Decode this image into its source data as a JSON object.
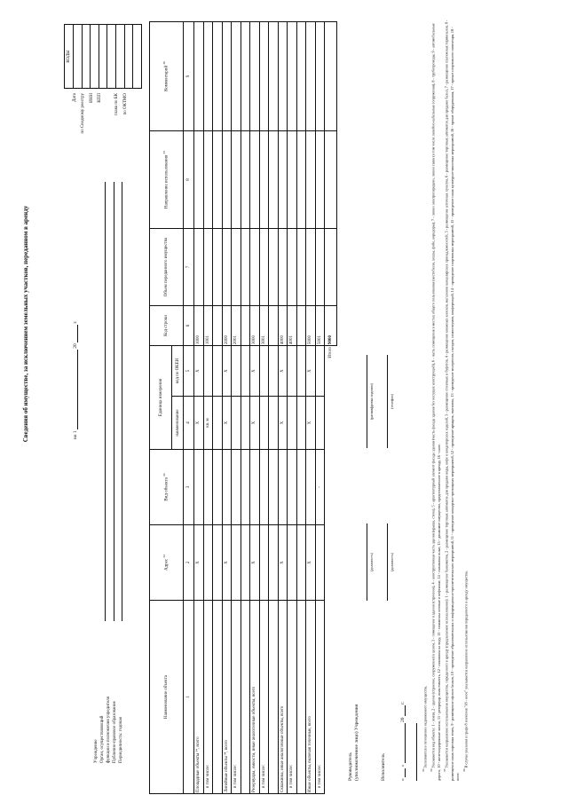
{
  "title": "Сведения об имуществе, за исключением земельных участков, переданном в аренду",
  "as_of": {
    "prefix": "на 1",
    "year_prefix": "20",
    "year_suffix": "г."
  },
  "codes": {
    "header": "КОДЫ",
    "labels": [
      "Дата",
      "по Сводному реестру",
      "ИНН",
      "КПП",
      "",
      "глава по БК",
      "по ОКТМО"
    ]
  },
  "org_fields": [
    {
      "label": "Учреждение"
    },
    {
      "label": "Орган, осуществляющий"
    },
    {
      "label": "функции и полномочия учредителя"
    },
    {
      "label": "Публично-правовое образование"
    },
    {
      "label": "Периодичность: годовая"
    }
  ],
  "table": {
    "headers": {
      "name": "Наименование объекта",
      "address": "Адрес",
      "address_note": "33",
      "type": "Вид объекта",
      "type_note": "34",
      "unit": "Единица измерения",
      "unit_name": "наименование",
      "unit_okei": "код по ОКЕИ",
      "row_code": "Код строки",
      "volume": "Объем переданного имущества",
      "usage": "Направление использования",
      "usage_note": "35",
      "comment": "Комментарий",
      "comment_note": "36"
    },
    "column_numbers": [
      "1",
      "2",
      "3",
      "4",
      "5",
      "6",
      "7",
      "8",
      "9"
    ],
    "rows": [
      {
        "name": "Площадные объекты ³⁴, всего",
        "address": "X",
        "type": "",
        "unit_name": "X",
        "okei": "X",
        "code": "1000"
      },
      {
        "name": "в том числе:",
        "indent": true,
        "address": "",
        "type": "",
        "unit_name": "кв. м",
        "okei": "",
        "code": "1001"
      },
      {
        "name": "",
        "address": "",
        "type": "",
        "unit_name": "",
        "okei": "",
        "code": ""
      },
      {
        "name": "Линейные объекты ³⁴, всего",
        "address": "X",
        "type": "",
        "unit_name": "X",
        "okei": "X",
        "code": "2000"
      },
      {
        "name": "в том числе:",
        "indent": true,
        "address": "",
        "type": "",
        "unit_name": "",
        "okei": "",
        "code": "2001"
      },
      {
        "name": "",
        "address": "",
        "type": "",
        "unit_name": "",
        "okei": "",
        "code": ""
      },
      {
        "name": "Резервуары, емкости, иные аналогичные объекты, всего",
        "address": "X",
        "type": "",
        "unit_name": "X",
        "okei": "X",
        "code": "3000"
      },
      {
        "name": "в том числе:",
        "indent": true,
        "address": "",
        "type": "",
        "unit_name": "",
        "okei": "",
        "code": "3001"
      },
      {
        "name": "",
        "address": "",
        "type": "",
        "unit_name": "",
        "okei": "",
        "code": ""
      },
      {
        "name": "Скважины, иные аналогичные объекты, всего",
        "address": "X",
        "type": "",
        "unit_name": "X",
        "okei": "X",
        "code": "4000"
      },
      {
        "name": "в том числе:",
        "indent": true,
        "address": "",
        "type": "",
        "unit_name": "",
        "okei": "",
        "code": "4001"
      },
      {
        "name": "",
        "address": "",
        "type": "",
        "unit_name": "",
        "okei": "",
        "code": ""
      },
      {
        "name": "Иные объекты, включая точечные, всего",
        "address": "X",
        "type": "",
        "unit_name": "X",
        "okei": "X",
        "code": "5000"
      },
      {
        "name": "в том числе:",
        "indent": true,
        "address": "",
        "type": "-",
        "unit_name": "",
        "okei": "",
        "code": "5001"
      }
    ],
    "total": {
      "label": "Итого",
      "code": "9000"
    }
  },
  "signatures": {
    "head_label_1": "Руководитель",
    "head_label_2": "(уполномоченное лицо) Учреждения",
    "executor_label": "Исполнитель",
    "position_caption": "(должность)",
    "decode_caption": "(расшифровка подписи)",
    "phone_caption": "(телефон)",
    "date_quote_open": "«",
    "date_quote_close": "»",
    "date_year": "20",
    "date_suffix": "г."
  },
  "footnotes": [
    {
      "num": "33",
      "text": "Заполняется в отношении недвижимого имущества."
    },
    {
      "num": "34",
      "text": "Указывается вид объекта: 1 - земля, 2 - здание (строение, сооружение) в целом, 3 - помещение в здании (строении), 4 - конструктивная часть здания (крыша, стена), 5 - архитектурный элемент фасада здания (часть фасада здания без несущих конструкций), 6 - часть помещения в местах общего пользования (вестибюли, холлы, фойе, коридоры), 7 - линии электропередачи, линии связи (в том числе линейно-кабельные сооружения), 8 - трубопроводы, 9 - автомобильные дороги, 10 - железнодорожные линии, 11 - резервуар, иная емкость, 12 - скважины на воду, 13 - скважины газовые и нефтяные, 14 - скважины иные, 15 - движимое имущество, предоставленное в аренду, 16 - иное."
    },
    {
      "num": "35",
      "text": "Указывается направление использования имущества, переданного в аренду (предлагаемое использование): 1 - размещение банкоматов, 2 - размещение торговых автоматов для продажи воды, кофе и кондитерских изделий, 3 - размещение столовых и буфетов, 4 - размещение книжных киосков, магазинов канцелярских принадлежностей, 5 - размещение аптечных пунктов, 6 - размещение торговых автоматов для продажи бахил, 7 - размещение платежных терминалов, 8 - размещение иных торговых точек, 9 - размещение офисов банков, 10 - проведение образовательных и информационно-просветительских мероприятий, 11 - проведение концертно-зрелищных мероприятий, 12 - проведение ярмарок, выставок, 13 - проведение конгрессов, съездов, симпозиумов, конференций, 14 - проведение спортивных мероприятий, 15 - проведение иных культурно-массовых мероприятий, 16 - прокат оборудования, 17 - прокат спортивного инвентаря, 18 - иное."
    },
    {
      "num": "36",
      "text": "В случае указания в графе 8 значения \"18 - иное\" указывается направление использования переданного в аренду имущества."
    }
  ]
}
